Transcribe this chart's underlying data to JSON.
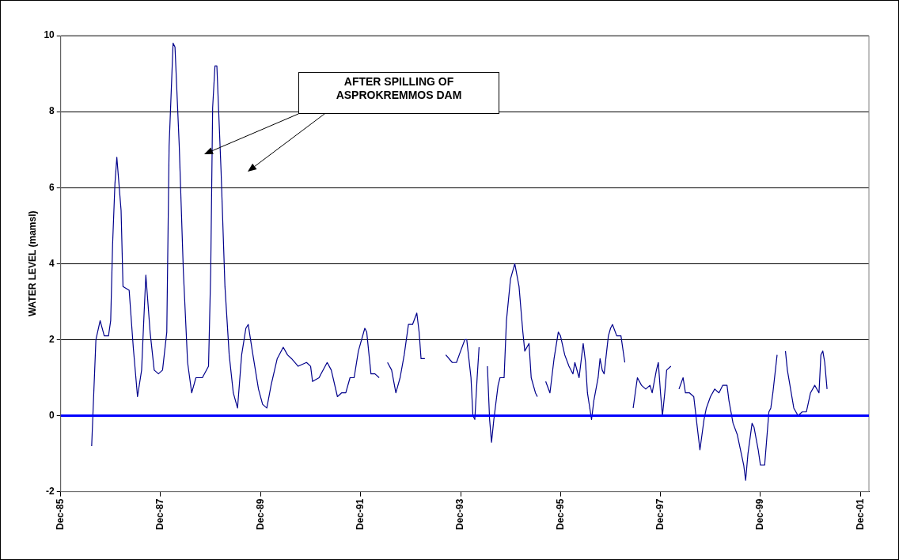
{
  "chart_data": {
    "type": "line",
    "ylabel": "WATER LEVEL (mamsl)",
    "x": [
      "1986-07-15",
      "1986-08-15",
      "1986-09-15",
      "1986-10-15",
      "1986-11-15",
      "1986-12-01",
      "1986-12-15",
      "1987-01-01",
      "1987-01-15",
      "1987-02-15",
      "1987-03-01",
      "1987-04-15",
      "1987-05-15",
      "1987-06-15",
      "1987-07-15",
      "1987-08-01",
      "1987-08-15",
      "1987-09-15",
      "1987-10-15",
      "1987-11-15",
      "1987-12-15",
      "1988-01-15",
      "1988-02-01",
      "1988-03-01",
      "1988-03-15",
      "1988-04-15",
      "1988-05-15",
      "1988-06-15",
      "1988-07-15",
      "1988-08-15",
      "1988-10-01",
      "1988-11-15",
      "1988-12-01",
      "1988-12-15",
      "1989-01-01",
      "1989-01-15",
      "1989-02-15",
      "1989-03-15",
      "1989-04-15",
      "1989-05-15",
      "1989-06-15",
      "1989-07-15",
      "1989-08-15",
      "1989-09-01",
      "1989-10-01",
      "1989-11-15",
      "1989-12-15",
      "1990-01-15",
      "1990-02-15",
      "1990-04-01",
      "1990-05-15",
      "1990-06-15",
      "1990-07-15",
      "1990-09-01",
      "1990-11-01",
      "1990-12-01",
      "1990-12-15",
      "1991-02-01",
      "1991-02-15",
      "1991-04-01",
      "1991-05-01",
      "1991-06-15",
      "1991-07-15",
      "1991-08-15",
      "1991-09-15",
      "1991-10-15",
      "1991-11-15",
      "1992-01-01",
      "1992-01-15",
      "1992-02-15",
      "1992-03-15",
      "1992-04-15",
      "1992-05-15",
      "1992-06-15",
      "1992-07-15",
      "1992-08-15",
      "1992-09-15",
      "1992-10-15",
      "1992-11-15",
      "1992-12-15",
      "1993-01-15",
      "1993-02-01",
      "1993-02-15",
      "1993-03-15",
      "1993-06-01",
      "1993-08-15",
      "1993-10-01",
      "1993-11-01",
      "1993-12-01",
      "1994-01-01",
      "1994-01-15",
      "1994-02-15",
      "1994-03-01",
      "1994-03-15",
      "1994-04-01",
      "1994-04-15",
      "1994-05-15",
      "1994-06-15",
      "1994-07-01",
      "1994-07-15",
      "1994-08-01",
      "1994-09-01",
      "1994-09-15",
      "1994-10-15",
      "1994-11-01",
      "1994-12-01",
      "1995-01-01",
      "1995-02-01",
      "1995-03-01",
      "1995-03-15",
      "1995-04-15",
      "1995-05-01",
      "1995-06-01",
      "1995-06-15",
      "1995-07-15",
      "1995-08-15",
      "1995-09-15",
      "1995-10-15",
      "1995-11-15",
      "1995-12-01",
      "1996-01-01",
      "1996-02-01",
      "1996-03-01",
      "1996-03-15",
      "1996-04-15",
      "1996-05-15",
      "1996-06-01",
      "1996-06-15",
      "1996-07-15",
      "1996-08-01",
      "1996-09-01",
      "1996-09-15",
      "1996-10-01",
      "1996-10-15",
      "1996-11-15",
      "1996-12-01",
      "1996-12-15",
      "1997-01-15",
      "1997-02-15",
      "1997-03-15",
      "1997-04-15",
      "1997-05-15",
      "1997-06-15",
      "1997-07-15",
      "1997-08-15",
      "1997-09-15",
      "1997-10-01",
      "1997-11-01",
      "1997-11-15",
      "1997-12-01",
      "1997-12-15",
      "1998-01-01",
      "1998-01-15",
      "1998-02-15",
      "1998-03-15",
      "1998-04-15",
      "1998-05-15",
      "1998-06-01",
      "1998-07-01",
      "1998-08-01",
      "1998-08-20",
      "1998-09-15",
      "1998-10-15",
      "1998-11-01",
      "1998-12-01",
      "1999-01-01",
      "1999-02-01",
      "1999-03-01",
      "1999-04-01",
      "1999-04-15",
      "1999-05-15",
      "1999-06-15",
      "1999-08-01",
      "1999-08-15",
      "1999-09-01",
      "1999-10-01",
      "1999-10-15",
      "1999-11-15",
      "1999-12-01",
      "2000-01-01",
      "2000-02-01",
      "2000-02-15",
      "2000-03-01",
      "2000-04-01",
      "2000-05-01",
      "2000-06-01",
      "2000-06-15",
      "2000-08-01",
      "2000-09-01",
      "2000-10-01",
      "2000-11-01",
      "2000-12-01",
      "2001-01-01",
      "2001-02-01",
      "2001-02-15",
      "2001-03-01",
      "2001-03-15",
      "2001-04-01"
    ],
    "series": [
      {
        "color": "#00008b",
        "values": [
          -0.8,
          2.0,
          2.5,
          2.1,
          2.1,
          2.5,
          4.5,
          6.1,
          6.8,
          5.4,
          3.4,
          3.3,
          1.8,
          0.5,
          1.2,
          2.6,
          3.7,
          2.2,
          1.2,
          1.1,
          1.2,
          2.2,
          7.1,
          9.8,
          9.7,
          7.1,
          3.8,
          1.4,
          0.6,
          1.0,
          1.0,
          1.3,
          3.8,
          8.1,
          9.2,
          9.2,
          6.4,
          3.4,
          1.6,
          0.6,
          0.2,
          1.6,
          2.3,
          2.4,
          1.7,
          0.7,
          0.3,
          0.2,
          0.8,
          1.5,
          1.8,
          1.6,
          1.5,
          1.3,
          1.4,
          1.3,
          0.9,
          1.0,
          1.1,
          1.4,
          1.2,
          0.5,
          0.6,
          0.6,
          1.0,
          1.0,
          1.7,
          2.3,
          2.2,
          1.1,
          1.1,
          1.0,
          null,
          1.4,
          1.2,
          0.6,
          1.0,
          1.6,
          2.4,
          2.4,
          2.7,
          2.2,
          1.5,
          1.5,
          null,
          1.6,
          1.4,
          1.4,
          1.7,
          2.0,
          2.0,
          1.0,
          0.0,
          -0.1,
          1.0,
          1.8,
          null,
          1.3,
          -0.1,
          -0.7,
          -0.1,
          0.8,
          1.0,
          1.0,
          2.5,
          3.6,
          4.0,
          3.4,
          2.2,
          1.7,
          1.9,
          1.0,
          0.6,
          0.5,
          null,
          0.9,
          0.6,
          1.5,
          2.2,
          2.1,
          1.6,
          1.3,
          1.1,
          1.4,
          1.0,
          1.9,
          1.4,
          0.6,
          -0.1,
          0.4,
          1.0,
          1.5,
          1.2,
          1.1,
          2.1,
          2.3,
          2.4,
          2.1,
          2.1,
          1.4,
          null,
          0.2,
          1.0,
          0.8,
          0.7,
          0.8,
          0.6,
          1.2,
          1.4,
          0.6,
          0.0,
          0.6,
          1.2,
          1.3,
          null,
          0.7,
          1.0,
          0.6,
          0.6,
          0.5,
          -0.1,
          -0.9,
          -0.1,
          0.2,
          0.5,
          0.7,
          0.6,
          0.8,
          0.8,
          0.4,
          -0.2,
          -0.5,
          -1.3,
          -1.7,
          -1.0,
          -0.2,
          -0.3,
          -0.9,
          -1.3,
          -1.3,
          0.1,
          0.2,
          0.6,
          1.6,
          null,
          1.7,
          1.2,
          0.2,
          0.0,
          0.1,
          0.1,
          0.6,
          0.8,
          0.6,
          1.6,
          1.7,
          1.4,
          0.7
        ]
      }
    ],
    "xlim": [
      "1985-12-01",
      "2002-02-01"
    ],
    "xticks": [
      {
        "value": "1985-12-01",
        "label": "Dec-85"
      },
      {
        "value": "1987-12-01",
        "label": "Dec-87"
      },
      {
        "value": "1989-12-01",
        "label": "Dec-89"
      },
      {
        "value": "1991-12-01",
        "label": "Dec-91"
      },
      {
        "value": "1993-12-01",
        "label": "Dec-93"
      },
      {
        "value": "1995-12-01",
        "label": "Dec-95"
      },
      {
        "value": "1997-12-01",
        "label": "Dec-97"
      },
      {
        "value": "1999-12-01",
        "label": "Dec-99"
      },
      {
        "value": "2001-12-01",
        "label": "Dec-01"
      }
    ],
    "ylim": [
      -2,
      10
    ],
    "yticks": [
      -2,
      0,
      2,
      4,
      6,
      8,
      10
    ],
    "ref_lines": [
      {
        "axis": "y",
        "value": 0,
        "color": "#0000ff"
      }
    ],
    "annotations": [
      "AFTER SPILLING OF ASPROKREMMOS DAM"
    ],
    "grid": "y",
    "legend": false,
    "marker": "none",
    "line_style": "solid"
  }
}
